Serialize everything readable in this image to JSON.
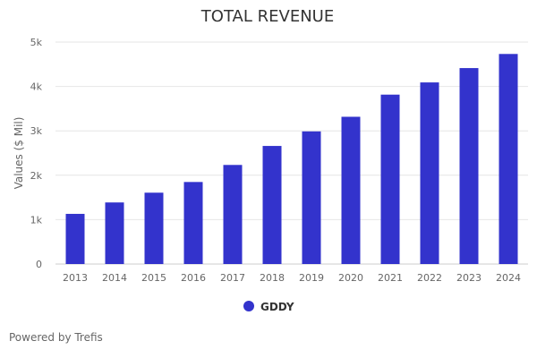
{
  "chart_data": {
    "type": "bar",
    "title": "TOTAL REVENUE",
    "xlabel": "",
    "ylabel": "Values ($ Mil)",
    "ylim": [
      0,
      5000
    ],
    "yticks": [
      {
        "value": 0,
        "label": "0"
      },
      {
        "value": 1000,
        "label": "1k"
      },
      {
        "value": 2000,
        "label": "2k"
      },
      {
        "value": 3000,
        "label": "3k"
      },
      {
        "value": 4000,
        "label": "4k"
      },
      {
        "value": 5000,
        "label": "5k"
      }
    ],
    "grid": true,
    "legend_position": "bottom-center",
    "categories": [
      "2013",
      "2014",
      "2015",
      "2016",
      "2017",
      "2018",
      "2019",
      "2020",
      "2021",
      "2022",
      "2023",
      "2024"
    ],
    "series": [
      {
        "name": "GDDY",
        "color": "#3333CC",
        "values": [
          1130,
          1387,
          1607,
          1848,
          2232,
          2660,
          2988,
          3317,
          3816,
          4091,
          4414,
          4732
        ]
      }
    ]
  },
  "footer": {
    "credit": "Powered by Trefis"
  }
}
